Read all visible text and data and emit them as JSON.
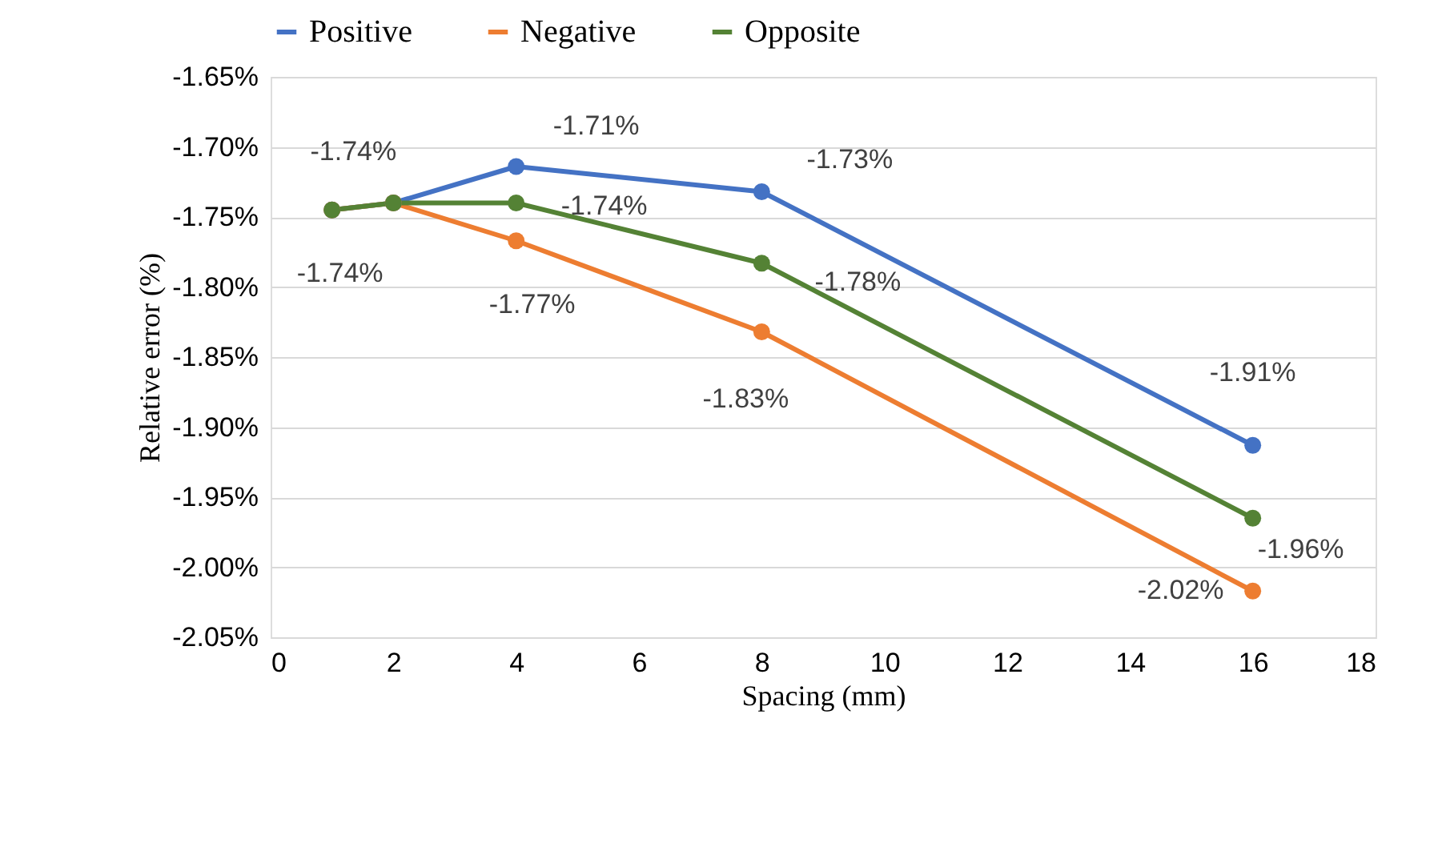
{
  "chart_data": {
    "type": "line",
    "xlabel": "Spacing (mm)",
    "ylabel": "Relative error (%)",
    "x": [
      1,
      2,
      4,
      8,
      16
    ],
    "series": [
      {
        "name": "Positive",
        "color": "#4472c4",
        "values": [
          -1.745,
          -1.74,
          -1.714,
          -1.732,
          -1.913
        ],
        "value_labels": [
          null,
          "-1.74%",
          "-1.71%",
          "-1.73%",
          "-1.91%"
        ]
      },
      {
        "name": "Negative",
        "color": "#ed7d31",
        "values": [
          -1.745,
          -1.74,
          -1.767,
          -1.832,
          -2.017
        ],
        "value_labels": [
          null,
          null,
          "-1.77%",
          "-1.83%",
          "-2.02%"
        ]
      },
      {
        "name": "Opposite",
        "color": "#548235",
        "values": [
          -1.745,
          -1.74,
          -1.74,
          -1.783,
          -1.965
        ],
        "value_labels": [
          "-1.74%",
          null,
          "-1.74%",
          "-1.78%",
          "-1.96%"
        ]
      }
    ],
    "xlim": [
      0,
      18
    ],
    "xticks": [
      0,
      2,
      4,
      6,
      8,
      10,
      12,
      14,
      16,
      18
    ],
    "ylim": [
      -2.05,
      -1.65
    ],
    "yticks": [
      {
        "value": -2.05,
        "label": "-2.05%"
      },
      {
        "value": -2.0,
        "label": "-2.00%"
      },
      {
        "value": -1.95,
        "label": "-1.95%"
      },
      {
        "value": -1.9,
        "label": "-1.90%"
      },
      {
        "value": -1.85,
        "label": "-1.85%"
      },
      {
        "value": -1.8,
        "label": "-1.80%"
      },
      {
        "value": -1.75,
        "label": "-1.75%"
      },
      {
        "value": -1.7,
        "label": "-1.70%"
      },
      {
        "value": -1.65,
        "label": "-1.65%"
      }
    ],
    "grid": "y",
    "legend": "top",
    "marker": "circle",
    "line_style": "solid"
  }
}
